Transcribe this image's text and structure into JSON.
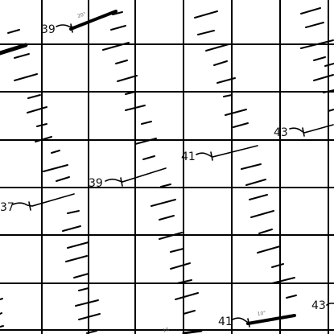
{
  "chart": {
    "title": "",
    "colors": {
      "background": "#ffffff",
      "grid": "#000000",
      "ink": "#111111",
      "faint": "#666666"
    }
  },
  "labels": {
    "contour_39_top": "39",
    "contour_39_mid": "39",
    "contour_37": "37",
    "contour_41_mid": "41",
    "contour_43_right": "43",
    "contour_41_bottom": "41",
    "contour_43_bottom": "43",
    "tiny_20_top": "20°",
    "tiny_10_bottom": "10°",
    "tiny_10_bottom_left": "10"
  }
}
